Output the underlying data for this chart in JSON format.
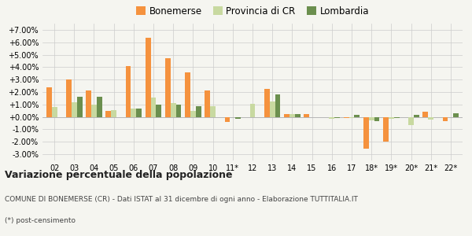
{
  "years": [
    "02",
    "03",
    "04",
    "05",
    "06",
    "07",
    "08",
    "09",
    "10",
    "11*",
    "12",
    "13",
    "14",
    "15",
    "16",
    "17",
    "18*",
    "19*",
    "20*",
    "21*",
    "22*"
  ],
  "bonemerse": [
    0.024,
    0.03,
    0.021,
    0.005,
    0.041,
    0.0635,
    0.047,
    0.0355,
    0.021,
    -0.004,
    0.0,
    0.0225,
    0.002,
    0.002,
    0.0,
    -0.001,
    -0.0255,
    -0.02,
    0.0,
    0.0045,
    -0.0035
  ],
  "provincia_cr": [
    0.008,
    0.0115,
    0.01,
    0.0055,
    0.0065,
    0.0155,
    0.011,
    0.005,
    0.0085,
    -0.0005,
    0.0105,
    0.0125,
    0.0025,
    0.0,
    -0.0015,
    -0.001,
    -0.0025,
    -0.0015,
    -0.0065,
    -0.002,
    0.0
  ],
  "lombardia": [
    0.0,
    0.016,
    0.016,
    0.0,
    0.007,
    0.01,
    0.01,
    0.0085,
    0.0,
    -0.0015,
    0.0,
    0.018,
    0.0025,
    0.0,
    -0.001,
    0.0015,
    -0.0035,
    -0.001,
    0.0015,
    0.0,
    0.003
  ],
  "color_bonemerse": "#f5923e",
  "color_provincia": "#c8d9a0",
  "color_lombardia": "#6b8f4e",
  "legend_labels": [
    "Bonemerse",
    "Provincia di CR",
    "Lombardia"
  ],
  "title": "Variazione percentuale della popolazione",
  "subtitle": "COMUNE DI BONEMERSE (CR) - Dati ISTAT al 31 dicembre di ogni anno - Elaborazione TUTTITALIA.IT",
  "footnote": "(*) post-censimento",
  "ylim": [
    -0.035,
    0.075
  ],
  "yticks": [
    -0.03,
    -0.02,
    -0.01,
    0.0,
    0.01,
    0.02,
    0.03,
    0.04,
    0.05,
    0.06,
    0.07
  ],
  "bg_color": "#f5f5f0"
}
